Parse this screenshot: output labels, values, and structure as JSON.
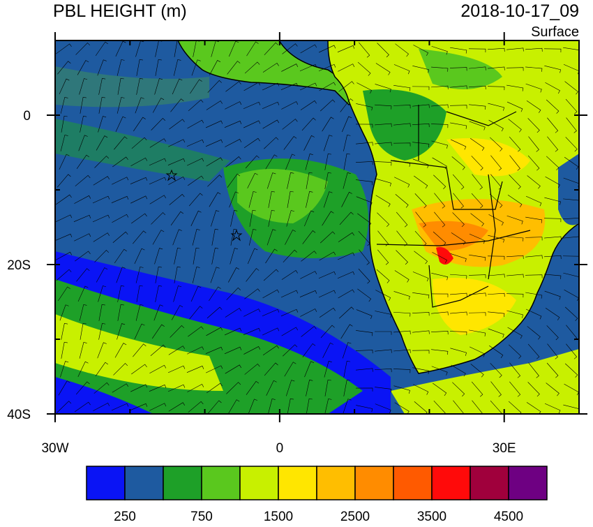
{
  "header": {
    "title": "PBL HEIGHT (m)",
    "time": "2018-10-17_09",
    "level": "Surface"
  },
  "map": {
    "xlim": [
      -30,
      40
    ],
    "ylim": [
      -40,
      10
    ],
    "xticks": [
      {
        "value": -30,
        "label": "30W"
      },
      0,
      {
        "value": 30,
        "label": "30E"
      }
    ],
    "yticks": [
      0,
      {
        "value": -20,
        "label": "20S"
      },
      {
        "value": -40,
        "label": "40S"
      }
    ]
  },
  "colorbar": {
    "colors": [
      "#0a14f5",
      "#1e5aa0",
      "#1ea028",
      "#5ac81e",
      "#c8f000",
      "#ffe600",
      "#ffbe00",
      "#ff8c00",
      "#ff5a00",
      "#ff0a0a",
      "#a0003c",
      "#6e0082"
    ],
    "labels": [
      250,
      750,
      1500,
      2500,
      3500,
      4500
    ]
  }
}
